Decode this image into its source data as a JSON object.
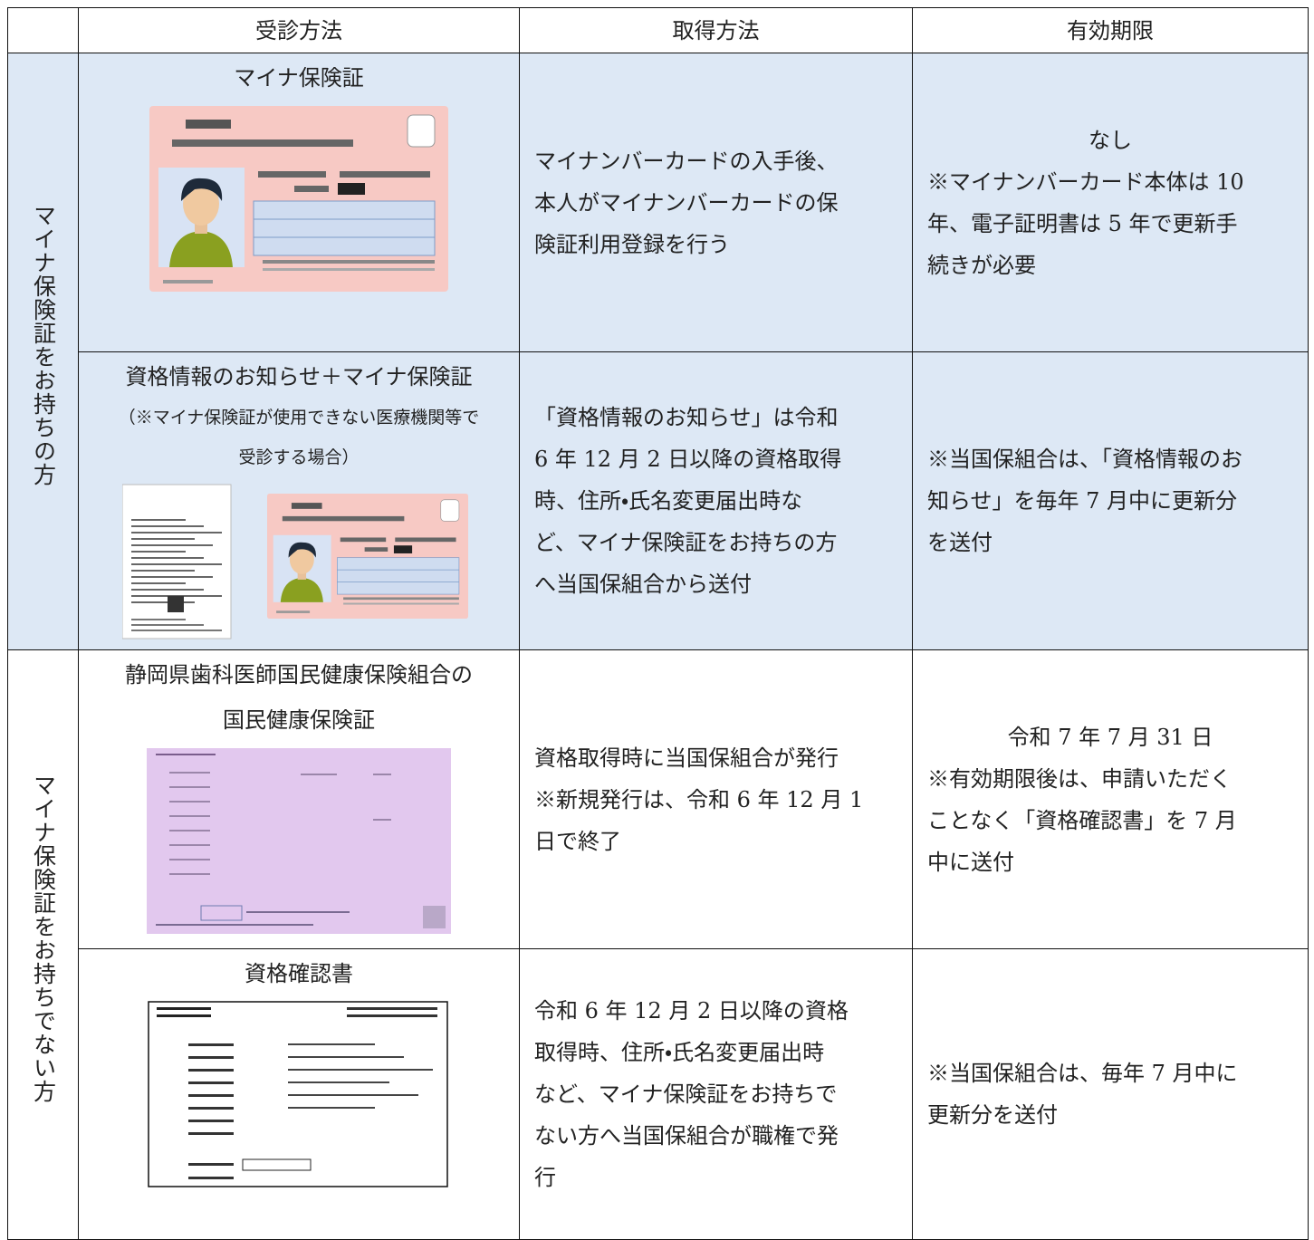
{
  "header": [
    "受診方法",
    "取得方法",
    "有効期限"
  ],
  "groups": [
    {
      "label": "マイナ保険証をお持ちの方",
      "rows": [
        {
          "method_title": [
            "マイナ保険証"
          ],
          "acquisition": [
            "マイナンバーカードの入手後、",
            "本人がマイナンバーカードの保",
            "険証利用登録を行う"
          ],
          "validity_heading": "なし",
          "validity": [
            "※マイナンバーカード本体は 10",
            "年、電子証明書は 5 年で更新手",
            "続きが必要"
          ]
        },
        {
          "method_title": [
            "資格情報のお知らせ＋マイナ保険証"
          ],
          "method_note": [
            "（※マイナ保険証が使用できない医療機関等で",
            "受診する場合）"
          ],
          "acquisition": [
            "「資格情報のお知らせ」は令和",
            "6 年 12 月 2 日以降の資格取得",
            "時、住所・氏名変更届出時な",
            "ど、マイナ保険証をお持ちの方",
            "へ当国保組合から送付"
          ],
          "validity": [
            "※当国保組合は、「資格情報のお",
            "知らせ」を毎年 7 月中に更新分",
            "を送付"
          ]
        }
      ]
    },
    {
      "label": "マイナ保険証をお持ちでない方",
      "rows": [
        {
          "method_title": [
            "静岡県歯科医師国民健康保険組合の",
            "国民健康保険証"
          ],
          "acquisition": [
            "資格取得時に当国保組合が発行",
            "※新規発行は、令和 6 年 12 月 1",
            "日で終了"
          ],
          "validity_heading": "令和 7 年 7 月 31 日",
          "validity": [
            "※有効期限後は、申請いただく",
            "ことなく「資格確認書」を 7 月",
            "中に送付"
          ]
        },
        {
          "method_title": [
            "資格確認書"
          ],
          "acquisition": [
            "令和 6 年 12 月 2 日以降の資格",
            "取得時、住所・氏名変更届出時",
            "など、マイナ保険証をお持ちで",
            "ない方へ当国保組合が職権で発",
            "行"
          ],
          "validity": [
            "※当国保組合は、毎年 7 月中に",
            "更新分を送付"
          ]
        }
      ]
    }
  ]
}
